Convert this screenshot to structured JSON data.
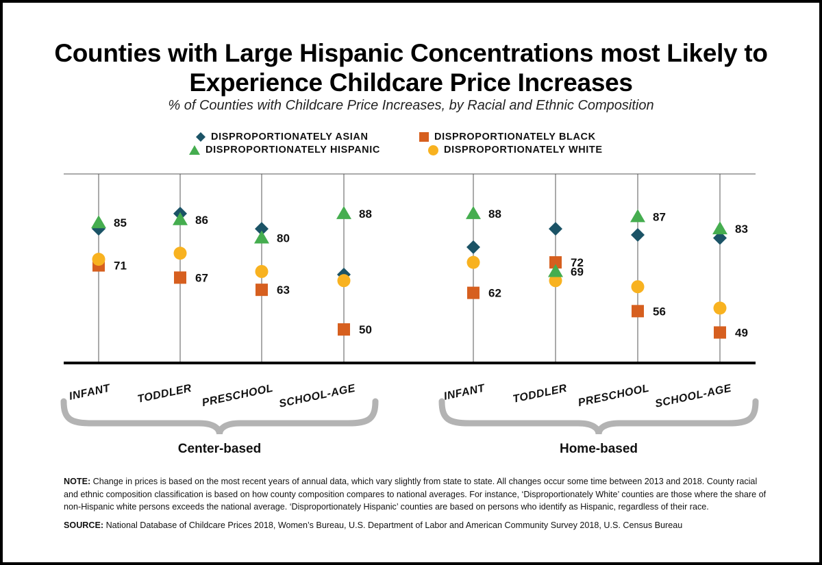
{
  "chart_data": {
    "type": "scatter",
    "title": "Counties with Large Hispanic Concentrations most Likely to Experience Childcare Price Increases",
    "subtitle": "% of Counties with Childcare Price Increases, by Racial and Ethnic Composition",
    "ylim": [
      39,
      101
    ],
    "grid": false,
    "legend_position": "top",
    "groups": [
      {
        "label": "Center-based",
        "categories": [
          "INFANT",
          "TODDLER",
          "PRESCHOOL",
          "SCHOOL-AGE"
        ]
      },
      {
        "label": "Home-based",
        "categories": [
          "INFANT",
          "TODDLER",
          "PRESCHOOL",
          "SCHOOL-AGE"
        ]
      }
    ],
    "series": [
      {
        "name": "DISPROPORTIONATELY ASIAN",
        "marker": "diamond",
        "color": "#1b5366",
        "labeled": false,
        "values": [
          83,
          88,
          83,
          68,
          77,
          83,
          81,
          80
        ]
      },
      {
        "name": "DISPROPORTIONATELY BLACK",
        "marker": "square",
        "color": "#d65f1f",
        "labeled": true,
        "values": [
          71,
          67,
          63,
          50,
          62,
          72,
          56,
          49
        ]
      },
      {
        "name": "DISPROPORTIONATELY HISPANIC",
        "marker": "triangle",
        "color": "#45ad4f",
        "labeled": true,
        "values": [
          85,
          86,
          80,
          88,
          88,
          69,
          87,
          83
        ]
      },
      {
        "name": "DISPROPORTIONATELY WHITE",
        "marker": "circle",
        "color": "#f8b220",
        "labeled": false,
        "values": [
          73,
          75,
          69,
          66,
          72,
          66,
          64,
          57
        ]
      }
    ]
  },
  "notes": {
    "note_label": "NOTE:",
    "note_text": " Change in prices is based on the most recent years of annual data, which vary slightly from state to state. All changes occur some time between 2013 and 2018. County racial and ethnic composition classification is based on how county composition compares to national averages. For instance, ‘Disproportionately White’ counties are those where the share of non-Hispanic white persons exceeds the national average. ‘Disproportionately Hispanic’ counties are based on persons who identify as Hispanic, regardless of their race.",
    "source_label": "SOURCE:",
    "source_text": " National Database of Childcare Prices 2018, Women’s Bureau, U.S. Department of Labor and American Community Survey 2018, U.S. Census Bureau"
  }
}
